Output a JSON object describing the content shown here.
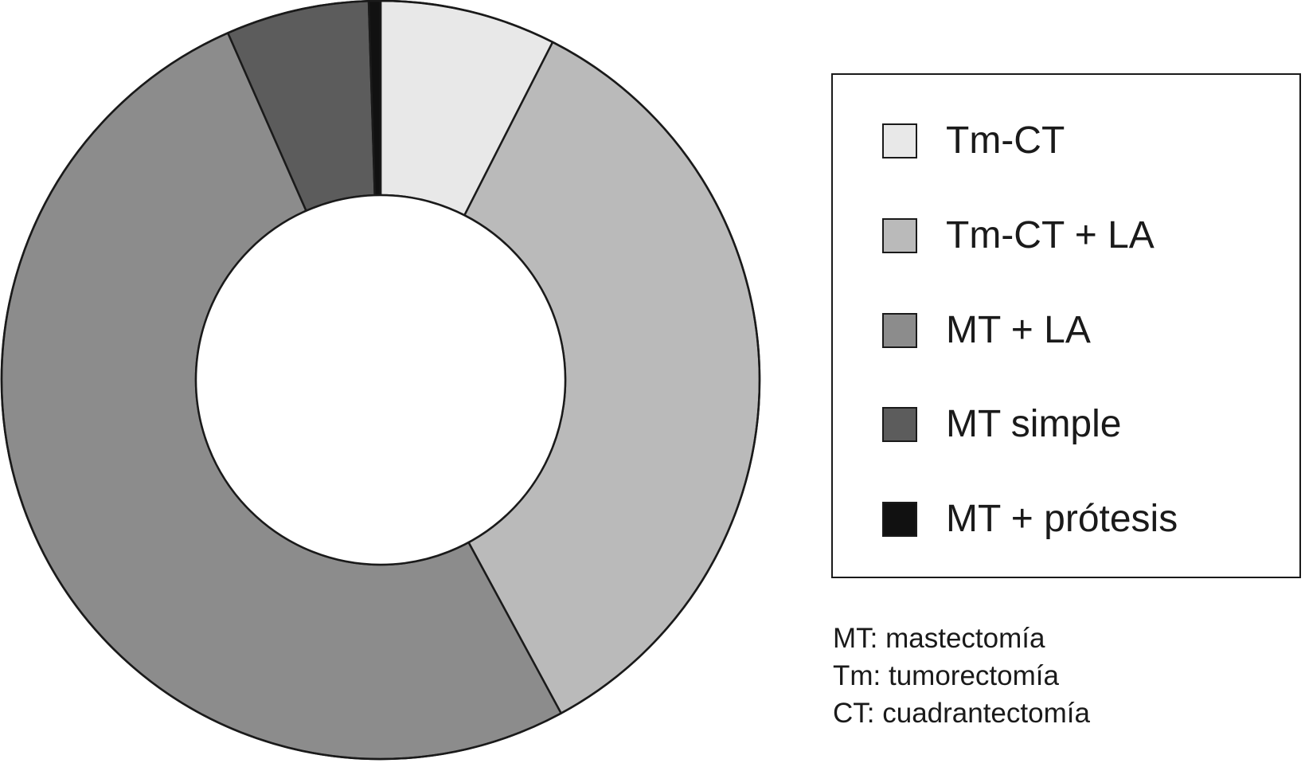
{
  "chart_data": {
    "type": "pie",
    "style": "donut",
    "slices": [
      {
        "label": "Tm-CT",
        "value": 7.5,
        "color": "#e8e8e8"
      },
      {
        "label": "Tm-CT + LA",
        "value": 34.6,
        "color": "#bababa"
      },
      {
        "label": "MT + LA",
        "value": 51.3,
        "color": "#8c8c8c"
      },
      {
        "label": "MT simple",
        "value": 6.1,
        "color": "#5c5c5c"
      },
      {
        "label": "MT + prótesis",
        "value": 0.5,
        "color": "#111111"
      }
    ],
    "legend_placement": "right",
    "notes": [
      "MT: mastectomía",
      "Tm: tumorectomía",
      "CT: cuadrantectomía"
    ]
  }
}
